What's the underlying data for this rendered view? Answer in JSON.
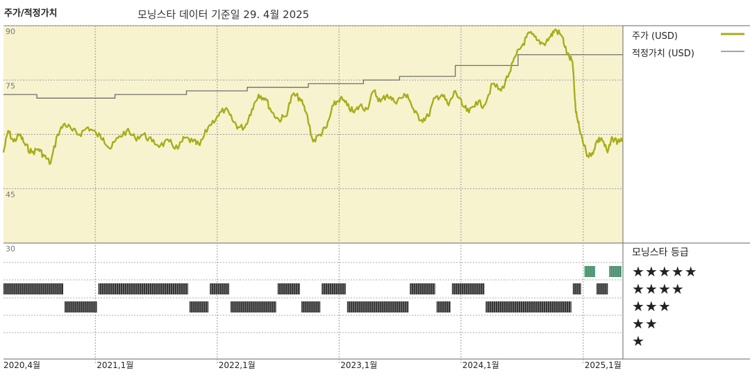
{
  "header": {
    "title": "주가/적정가치",
    "subtitle": "모닝스타 데이터 기준일 29. 4월 2025"
  },
  "legend": {
    "price_label": "주가 (USD)",
    "fair_label": "적정가치 (USD)",
    "price_color": "#a7ad19",
    "fair_color": "#6e6e6e"
  },
  "rating": {
    "title": "모닝스타 등급",
    "stars": [
      "★★★★★",
      "★★★★",
      "★★★",
      "★★",
      "★"
    ],
    "bar_color": "#333333",
    "five_star_color": "#3f8f6a"
  },
  "chart_data": {
    "type": "line",
    "background": "#f7f3cf",
    "ylim": [
      30,
      90
    ],
    "yticks": [
      90,
      75,
      45,
      30
    ],
    "xlim": [
      "2020-04-01",
      "2025-04-30"
    ],
    "xticks": [
      {
        "date": "2020-04-01",
        "label": "2020,4월"
      },
      {
        "date": "2021-01-01",
        "label": "2021,1월"
      },
      {
        "date": "2022-01-01",
        "label": "2022,1월"
      },
      {
        "date": "2023-01-01",
        "label": "2023,1월"
      },
      {
        "date": "2024-01-01",
        "label": "2024,1월"
      },
      {
        "date": "2025-01-01",
        "label": "2025,1월"
      }
    ],
    "series": [
      {
        "name": "주가 (USD)",
        "points": [
          [
            "2020-04-01",
            55
          ],
          [
            "2020-04-15",
            61
          ],
          [
            "2020-05-01",
            58
          ],
          [
            "2020-05-20",
            60
          ],
          [
            "2020-06-05",
            57
          ],
          [
            "2020-06-25",
            55
          ],
          [
            "2020-07-15",
            56
          ],
          [
            "2020-08-01",
            54
          ],
          [
            "2020-08-20",
            52
          ],
          [
            "2020-09-10",
            60
          ],
          [
            "2020-10-01",
            63
          ],
          [
            "2020-10-25",
            61
          ],
          [
            "2020-11-15",
            60
          ],
          [
            "2020-12-10",
            62
          ],
          [
            "2021-01-05",
            60
          ],
          [
            "2021-01-25",
            59
          ],
          [
            "2021-02-15",
            56
          ],
          [
            "2021-03-10",
            59
          ],
          [
            "2021-04-05",
            61
          ],
          [
            "2021-04-30",
            59
          ],
          [
            "2021-05-25",
            60
          ],
          [
            "2021-06-20",
            58
          ],
          [
            "2021-07-15",
            57
          ],
          [
            "2021-08-10",
            58
          ],
          [
            "2021-09-05",
            56
          ],
          [
            "2021-09-25",
            59
          ],
          [
            "2021-10-20",
            58
          ],
          [
            "2021-11-10",
            57
          ],
          [
            "2021-12-05",
            62
          ],
          [
            "2022-01-01",
            65
          ],
          [
            "2022-01-25",
            67
          ],
          [
            "2022-02-15",
            64
          ],
          [
            "2022-03-05",
            62
          ],
          [
            "2022-03-25",
            62
          ],
          [
            "2022-04-15",
            67
          ],
          [
            "2022-05-05",
            71
          ],
          [
            "2022-05-25",
            70
          ],
          [
            "2022-06-15",
            66
          ],
          [
            "2022-07-05",
            64
          ],
          [
            "2022-07-25",
            65
          ],
          [
            "2022-08-15",
            71
          ],
          [
            "2022-09-05",
            70
          ],
          [
            "2022-09-25",
            66
          ],
          [
            "2022-10-15",
            58
          ],
          [
            "2022-11-05",
            60
          ],
          [
            "2022-11-25",
            62
          ],
          [
            "2022-12-15",
            68
          ],
          [
            "2023-01-05",
            70
          ],
          [
            "2023-01-25",
            68
          ],
          [
            "2023-02-15",
            66
          ],
          [
            "2023-03-05",
            68
          ],
          [
            "2023-03-25",
            67
          ],
          [
            "2023-04-15",
            72
          ],
          [
            "2023-05-05",
            69
          ],
          [
            "2023-05-25",
            71
          ],
          [
            "2023-06-15",
            69
          ],
          [
            "2023-07-05",
            70
          ],
          [
            "2023-07-25",
            71
          ],
          [
            "2023-08-15",
            66
          ],
          [
            "2023-09-05",
            64
          ],
          [
            "2023-09-25",
            65
          ],
          [
            "2023-10-15",
            70
          ],
          [
            "2023-11-05",
            71
          ],
          [
            "2023-11-25",
            68
          ],
          [
            "2023-12-15",
            72
          ],
          [
            "2024-01-05",
            68
          ],
          [
            "2024-01-25",
            66
          ],
          [
            "2024-02-15",
            69
          ],
          [
            "2024-03-10",
            68
          ],
          [
            "2024-04-05",
            74
          ],
          [
            "2024-04-30",
            72
          ],
          [
            "2024-05-25",
            77
          ],
          [
            "2024-06-15",
            82
          ],
          [
            "2024-07-05",
            85
          ],
          [
            "2024-07-25",
            88
          ],
          [
            "2024-08-15",
            86
          ],
          [
            "2024-09-05",
            85
          ],
          [
            "2024-09-25",
            87
          ],
          [
            "2024-10-10",
            89
          ],
          [
            "2024-10-30",
            87
          ],
          [
            "2024-11-15",
            82
          ],
          [
            "2024-11-30",
            80
          ],
          [
            "2024-12-10",
            66
          ],
          [
            "2024-12-20",
            62
          ],
          [
            "2025-01-10",
            55
          ],
          [
            "2025-01-25",
            54
          ],
          [
            "2025-02-10",
            58
          ],
          [
            "2025-02-25",
            59
          ],
          [
            "2025-03-15",
            55
          ],
          [
            "2025-03-30",
            59
          ],
          [
            "2025-04-15",
            58
          ],
          [
            "2025-04-29",
            59
          ]
        ]
      },
      {
        "name": "적정가치 (USD)",
        "step": true,
        "points": [
          [
            "2020-04-01",
            71
          ],
          [
            "2020-07-10",
            70
          ],
          [
            "2021-03-01",
            71
          ],
          [
            "2021-10-01",
            72
          ],
          [
            "2022-04-01",
            73
          ],
          [
            "2022-10-01",
            74
          ],
          [
            "2023-03-15",
            75
          ],
          [
            "2023-07-01",
            76
          ],
          [
            "2023-12-15",
            79
          ],
          [
            "2024-06-20",
            82
          ],
          [
            "2024-12-20",
            82
          ],
          [
            "2025-04-30",
            82
          ]
        ]
      }
    ],
    "rating_segments": [
      [
        "2020-04-01",
        "2020-10-01",
        4
      ],
      [
        "2020-10-01",
        "2021-01-10",
        3
      ],
      [
        "2021-01-10",
        "2021-10-10",
        4
      ],
      [
        "2021-10-10",
        "2021-12-10",
        3
      ],
      [
        "2021-12-10",
        "2022-02-10",
        4
      ],
      [
        "2022-02-10",
        "2022-07-01",
        3
      ],
      [
        "2022-07-01",
        "2022-09-10",
        4
      ],
      [
        "2022-09-10",
        "2022-11-10",
        3
      ],
      [
        "2022-11-10",
        "2023-01-25",
        4
      ],
      [
        "2023-01-25",
        "2023-08-01",
        3
      ],
      [
        "2023-08-01",
        "2023-10-20",
        4
      ],
      [
        "2023-10-20",
        "2023-12-05",
        3
      ],
      [
        "2023-12-05",
        "2024-03-15",
        4
      ],
      [
        "2024-03-15",
        "2024-12-01",
        3
      ],
      [
        "2024-12-01",
        "2024-12-30",
        4
      ],
      [
        "2025-01-05",
        "2025-02-10",
        5
      ],
      [
        "2025-02-10",
        "2025-03-20",
        4
      ],
      [
        "2025-03-20",
        "2025-04-30",
        5
      ]
    ]
  }
}
